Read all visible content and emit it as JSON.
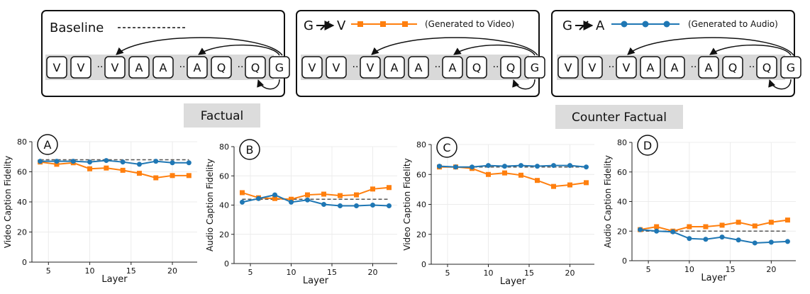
{
  "legend": {
    "baseline": "Baseline",
    "gv": {
      "from": "G",
      "to": "V",
      "desc": "(Generated to Video)"
    },
    "ga": {
      "from": "G",
      "to": "A",
      "desc": "(Generated to Audio)"
    }
  },
  "tokens": {
    "v": "V",
    "a": "A",
    "q": "Q",
    "g": "G",
    "dots": "··"
  },
  "section_labels": {
    "factual": "Factual",
    "counter": "Counter Factual"
  },
  "colors": {
    "orange": "#ff7f0e",
    "blue": "#1f77b4",
    "baseline": "#555555",
    "token_band": "#d9d9d9",
    "label_bg": "#dcdcdc"
  },
  "chart_data": [
    {
      "id": "A",
      "type": "line",
      "panel_label": "A",
      "xlabel": "Layer",
      "ylabel": "Video Caption Fidelity",
      "xlim": [
        3,
        23
      ],
      "ylim": [
        0,
        80
      ],
      "xticks": [
        5,
        10,
        15,
        20
      ],
      "yticks": [
        0,
        20,
        40,
        60,
        80
      ],
      "baseline": 68,
      "x": [
        4,
        6,
        8,
        10,
        12,
        14,
        16,
        18,
        20,
        22
      ],
      "series": [
        {
          "name": "Generated to Video",
          "color": "orange",
          "marker": "square",
          "values": [
            66.5,
            65,
            66,
            62,
            62.5,
            61,
            59,
            56,
            57.5,
            57.5
          ]
        },
        {
          "name": "Generated to Audio",
          "color": "blue",
          "marker": "circle",
          "values": [
            67,
            67,
            67,
            66.5,
            67.5,
            66.5,
            65,
            67,
            66,
            66
          ]
        }
      ]
    },
    {
      "id": "B",
      "type": "line",
      "panel_label": "B",
      "xlabel": "Layer",
      "ylabel": "Audio Caption Fidelity",
      "xlim": [
        3,
        23
      ],
      "ylim": [
        0,
        80
      ],
      "xticks": [
        5,
        10,
        15,
        20
      ],
      "yticks": [
        0,
        20,
        40,
        60,
        80
      ],
      "baseline": 44,
      "x": [
        4,
        6,
        8,
        10,
        12,
        14,
        16,
        18,
        20,
        22
      ],
      "series": [
        {
          "name": "Generated to Video",
          "color": "orange",
          "marker": "square",
          "values": [
            48.5,
            45,
            44.5,
            44,
            47,
            47.5,
            46.5,
            47,
            51,
            52
          ]
        },
        {
          "name": "Generated to Audio",
          "color": "blue",
          "marker": "circle",
          "values": [
            42,
            44.5,
            47,
            42,
            43.5,
            40.5,
            39.5,
            39.5,
            40,
            39.5
          ]
        }
      ]
    },
    {
      "id": "C",
      "type": "line",
      "panel_label": "C",
      "xlabel": "Layer",
      "ylabel": "Video Caption Fidelity",
      "xlim": [
        3,
        23
      ],
      "ylim": [
        0,
        80
      ],
      "xticks": [
        5,
        10,
        15,
        20
      ],
      "yticks": [
        0,
        20,
        40,
        60,
        80
      ],
      "baseline": 65,
      "x": [
        4,
        6,
        8,
        10,
        12,
        14,
        16,
        18,
        20,
        22
      ],
      "series": [
        {
          "name": "Generated to Video",
          "color": "orange",
          "marker": "square",
          "values": [
            65,
            65,
            64,
            60,
            61,
            59.5,
            56,
            52,
            53,
            54.5
          ]
        },
        {
          "name": "Generated to Audio",
          "color": "blue",
          "marker": "circle",
          "values": [
            65.5,
            65,
            65,
            66,
            65.5,
            66,
            65.5,
            66,
            66,
            65
          ]
        }
      ]
    },
    {
      "id": "D",
      "type": "line",
      "panel_label": "D",
      "xlabel": "Layer",
      "ylabel": "Audio Caption Fidelity",
      "xlim": [
        3,
        23
      ],
      "ylim": [
        0,
        80
      ],
      "xticks": [
        5,
        10,
        15,
        20
      ],
      "yticks": [
        0,
        20,
        40,
        60,
        80
      ],
      "baseline": 20,
      "x": [
        4,
        6,
        8,
        10,
        12,
        14,
        16,
        18,
        20,
        22
      ],
      "series": [
        {
          "name": "Generated to Video",
          "color": "orange",
          "marker": "square",
          "values": [
            21,
            23,
            20,
            23,
            23,
            24,
            26,
            23.5,
            26,
            27.5
          ]
        },
        {
          "name": "Generated to Audio",
          "color": "blue",
          "marker": "circle",
          "values": [
            21,
            20,
            19.5,
            15,
            14.5,
            16,
            14,
            12,
            12.5,
            13
          ]
        }
      ]
    }
  ]
}
